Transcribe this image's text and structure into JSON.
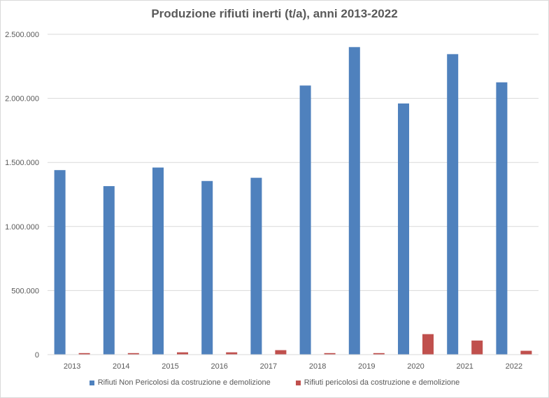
{
  "chart_data": {
    "type": "bar",
    "title": "Produzione rifiuti inerti (t/a), anni 2013-2022",
    "xlabel": "",
    "ylabel": "",
    "categories": [
      "2013",
      "2014",
      "2015",
      "2016",
      "2017",
      "2018",
      "2019",
      "2020",
      "2021",
      "2022"
    ],
    "ylim": [
      0,
      2500000
    ],
    "yticks": [
      0,
      500000,
      1000000,
      1500000,
      2000000,
      2500000
    ],
    "ytick_labels": [
      "0",
      "500.000",
      "1.000.000",
      "1.500.000",
      "2.000.000",
      "2.500.000"
    ],
    "grid": true,
    "legend_position": "bottom",
    "series": [
      {
        "name": "Rifiuti Non Pericolosi da costruzione e demolizione",
        "color": "#4f81bd",
        "values": [
          1440000,
          1315000,
          1460000,
          1355000,
          1380000,
          2100000,
          2400000,
          1960000,
          2345000,
          2125000
        ]
      },
      {
        "name": "Rifiuti pericolosi da costruzione e demolizione",
        "color": "#c0504d",
        "values": [
          12000,
          12000,
          18000,
          18000,
          35000,
          12000,
          12000,
          160000,
          110000,
          30000
        ]
      }
    ]
  }
}
